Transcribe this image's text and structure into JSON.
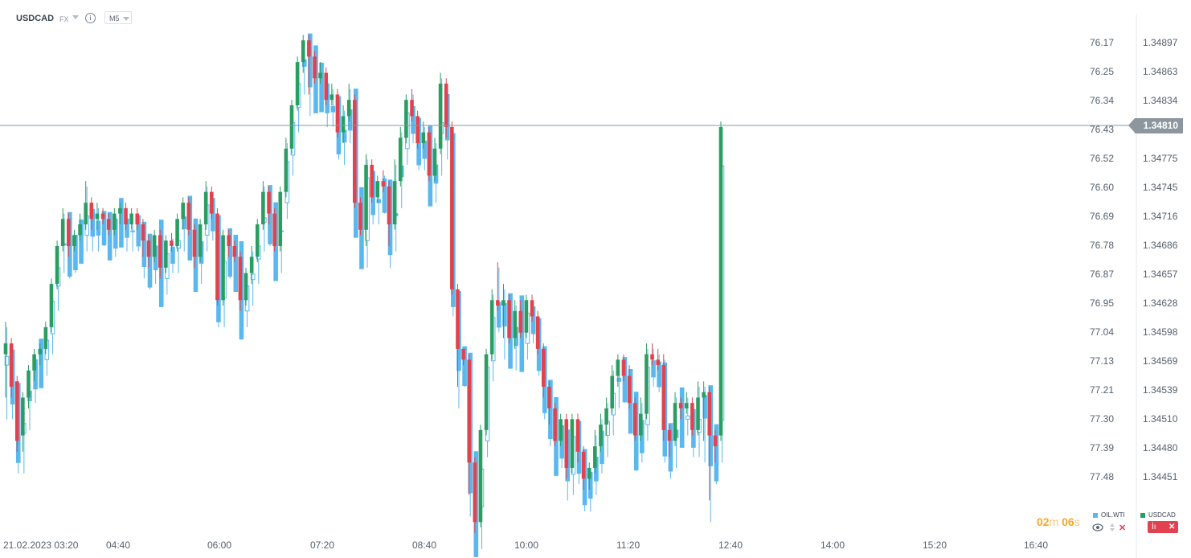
{
  "header": {
    "symbol": "USDCAD",
    "market": "FX",
    "info_glyph": "i",
    "timeframe": "M5"
  },
  "price_axis": {
    "primary": [
      "1.34897",
      "1.34863",
      "1.34834",
      "1.34804",
      "1.34775",
      "1.34745",
      "1.34716",
      "1.34686",
      "1.34657",
      "1.34628",
      "1.34598",
      "1.34569",
      "1.34539",
      "1.34510",
      "1.34480",
      "1.34451"
    ],
    "secondary": [
      "76.17",
      "76.25",
      "76.34",
      "76.43",
      "76.52",
      "76.60",
      "76.69",
      "76.78",
      "76.87",
      "76.95",
      "77.04",
      "77.13",
      "77.21",
      "77.30",
      "77.39",
      "77.48"
    ],
    "current_price": "1.34810"
  },
  "time_axis": [
    "21.02.2023 03:20",
    "04:40",
    "06:00",
    "07:20",
    "08:40",
    "10:00",
    "11:20",
    "12:40",
    "14:00",
    "15:20",
    "16:40"
  ],
  "countdown": {
    "minutes": "02",
    "min_unit": "m",
    "seconds": "06",
    "sec_unit": "s"
  },
  "legend": {
    "items": [
      {
        "label": "OIL.WTI",
        "color": "#5ab8ee"
      },
      {
        "label": "USDCAD",
        "color": "#2a9d62"
      }
    ]
  },
  "controls": {
    "eye_icon": "eye-icon",
    "sort_icon": "sort-icon",
    "remove_icon": "close-icon",
    "settings_glyph": "İı",
    "remove_glyph": "✕"
  },
  "colors": {
    "up": "#2a9d62",
    "down": "#e0434f",
    "overlay": "#5ab8ee",
    "price_line": "#8d969e"
  },
  "chart_data": [
    {
      "type": "candlestick",
      "series": "USDCAD",
      "timeframe": "M5",
      "x_axis": "time",
      "y_range": [
        1.3444,
        1.34905
      ],
      "values": [
        {
          "o": 1.346,
          "c": 1.3461,
          "h": 1.3463,
          "l": 1.3456
        },
        {
          "o": 1.3461,
          "c": 1.3457,
          "h": 1.34615,
          "l": 1.3456
        },
        {
          "o": 1.34575,
          "c": 1.3452,
          "h": 1.3458,
          "l": 1.3451
        },
        {
          "o": 1.34525,
          "c": 1.3456,
          "h": 1.34565,
          "l": 1.3451
        },
        {
          "o": 1.3456,
          "c": 1.34585,
          "h": 1.3459,
          "l": 1.3455
        },
        {
          "o": 1.34585,
          "c": 1.346,
          "h": 1.34605,
          "l": 1.34575
        },
        {
          "o": 1.346,
          "c": 1.34605,
          "h": 1.3461,
          "l": 1.3459
        },
        {
          "o": 1.34605,
          "c": 1.34625,
          "h": 1.3463,
          "l": 1.346
        },
        {
          "o": 1.34625,
          "c": 1.34665,
          "h": 1.3467,
          "l": 1.3462
        },
        {
          "o": 1.34665,
          "c": 1.347,
          "h": 1.34705,
          "l": 1.3466
        },
        {
          "o": 1.347,
          "c": 1.34725,
          "h": 1.34735,
          "l": 1.34695
        },
        {
          "o": 1.34725,
          "c": 1.347,
          "h": 1.3473,
          "l": 1.3469
        },
        {
          "o": 1.347,
          "c": 1.3471,
          "h": 1.34715,
          "l": 1.34695
        },
        {
          "o": 1.3471,
          "c": 1.3472,
          "h": 1.3473,
          "l": 1.34705
        },
        {
          "o": 1.3472,
          "c": 1.3474,
          "h": 1.3476,
          "l": 1.34715
        },
        {
          "o": 1.3474,
          "c": 1.34725,
          "h": 1.34745,
          "l": 1.34715
        },
        {
          "o": 1.34725,
          "c": 1.3473,
          "h": 1.3474,
          "l": 1.34715
        },
        {
          "o": 1.3473,
          "c": 1.34725,
          "h": 1.34735,
          "l": 1.3472
        },
        {
          "o": 1.34725,
          "c": 1.34715,
          "h": 1.3473,
          "l": 1.3471
        },
        {
          "o": 1.34715,
          "c": 1.3473,
          "h": 1.34735,
          "l": 1.3471
        },
        {
          "o": 1.3473,
          "c": 1.34735,
          "h": 1.3474,
          "l": 1.3472
        },
        {
          "o": 1.34735,
          "c": 1.3472,
          "h": 1.3474,
          "l": 1.34715
        },
        {
          "o": 1.3472,
          "c": 1.3473,
          "h": 1.34735,
          "l": 1.34715
        },
        {
          "o": 1.3473,
          "c": 1.3472,
          "h": 1.34735,
          "l": 1.34715
        },
        {
          "o": 1.3472,
          "c": 1.34705,
          "h": 1.34725,
          "l": 1.3469
        },
        {
          "o": 1.34705,
          "c": 1.3469,
          "h": 1.3471,
          "l": 1.3468
        },
        {
          "o": 1.3469,
          "c": 1.3471,
          "h": 1.34715,
          "l": 1.34685
        },
        {
          "o": 1.3471,
          "c": 1.3468,
          "h": 1.34715,
          "l": 1.3467
        },
        {
          "o": 1.3468,
          "c": 1.34705,
          "h": 1.3471,
          "l": 1.34675
        },
        {
          "o": 1.34705,
          "c": 1.347,
          "h": 1.34712,
          "l": 1.34695
        },
        {
          "o": 1.347,
          "c": 1.34725,
          "h": 1.3473,
          "l": 1.34695
        },
        {
          "o": 1.34725,
          "c": 1.3474,
          "h": 1.34745,
          "l": 1.34715
        },
        {
          "o": 1.3474,
          "c": 1.34715,
          "h": 1.34745,
          "l": 1.3471
        },
        {
          "o": 1.34715,
          "c": 1.3469,
          "h": 1.3472,
          "l": 1.3468
        },
        {
          "o": 1.3469,
          "c": 1.3472,
          "h": 1.34725,
          "l": 1.34685
        },
        {
          "o": 1.3472,
          "c": 1.3475,
          "h": 1.3476,
          "l": 1.34715
        },
        {
          "o": 1.3475,
          "c": 1.3473,
          "h": 1.34755,
          "l": 1.34725
        },
        {
          "o": 1.3473,
          "c": 1.3465,
          "h": 1.34735,
          "l": 1.34645
        },
        {
          "o": 1.3465,
          "c": 1.3471,
          "h": 1.34715,
          "l": 1.34645
        },
        {
          "o": 1.3471,
          "c": 1.347,
          "h": 1.34715,
          "l": 1.3469
        },
        {
          "o": 1.347,
          "c": 1.3469,
          "h": 1.34705,
          "l": 1.34685
        },
        {
          "o": 1.3469,
          "c": 1.3465,
          "h": 1.34695,
          "l": 1.3464
        },
        {
          "o": 1.3465,
          "c": 1.34675,
          "h": 1.3468,
          "l": 1.34645
        },
        {
          "o": 1.34675,
          "c": 1.3469,
          "h": 1.347,
          "l": 1.34665
        },
        {
          "o": 1.3469,
          "c": 1.3472,
          "h": 1.34725,
          "l": 1.34685
        },
        {
          "o": 1.3472,
          "c": 1.3475,
          "h": 1.3476,
          "l": 1.34715
        },
        {
          "o": 1.3475,
          "c": 1.3473,
          "h": 1.34755,
          "l": 1.3472
        },
        {
          "o": 1.3473,
          "c": 1.347,
          "h": 1.34735,
          "l": 1.34695
        },
        {
          "o": 1.347,
          "c": 1.3475,
          "h": 1.34755,
          "l": 1.34695
        },
        {
          "o": 1.3475,
          "c": 1.3479,
          "h": 1.348,
          "l": 1.34745
        },
        {
          "o": 1.3479,
          "c": 1.3483,
          "h": 1.34835,
          "l": 1.34785
        },
        {
          "o": 1.3483,
          "c": 1.3487,
          "h": 1.34875,
          "l": 1.34825
        },
        {
          "o": 1.3487,
          "c": 1.3489,
          "h": 1.34895,
          "l": 1.3486
        },
        {
          "o": 1.3489,
          "c": 1.34875,
          "h": 1.34895,
          "l": 1.3484
        },
        {
          "o": 1.34875,
          "c": 1.34855,
          "h": 1.3488,
          "l": 1.3485
        },
        {
          "o": 1.34855,
          "c": 1.3486,
          "h": 1.3487,
          "l": 1.3485
        },
        {
          "o": 1.3486,
          "c": 1.34835,
          "h": 1.34865,
          "l": 1.3483
        },
        {
          "o": 1.34835,
          "c": 1.3484,
          "h": 1.3485,
          "l": 1.3483
        },
        {
          "o": 1.3484,
          "c": 1.34805,
          "h": 1.34845,
          "l": 1.348
        },
        {
          "o": 1.34805,
          "c": 1.3482,
          "h": 1.3483,
          "l": 1.34795
        },
        {
          "o": 1.3482,
          "c": 1.34835,
          "h": 1.3485,
          "l": 1.34815
        },
        {
          "o": 1.34835,
          "c": 1.3474,
          "h": 1.3484,
          "l": 1.34735
        },
        {
          "o": 1.3474,
          "c": 1.34715,
          "h": 1.34745,
          "l": 1.3471
        },
        {
          "o": 1.34715,
          "c": 1.34775,
          "h": 1.34785,
          "l": 1.347
        },
        {
          "o": 1.34775,
          "c": 1.34745,
          "h": 1.3478,
          "l": 1.3474
        },
        {
          "o": 1.34745,
          "c": 1.3476,
          "h": 1.34765,
          "l": 1.3474
        },
        {
          "o": 1.3476,
          "c": 1.34755,
          "h": 1.3477,
          "l": 1.3475
        },
        {
          "o": 1.34755,
          "c": 1.3472,
          "h": 1.3476,
          "l": 1.347
        },
        {
          "o": 1.3472,
          "c": 1.3476,
          "h": 1.3478,
          "l": 1.34715
        },
        {
          "o": 1.3476,
          "c": 1.348,
          "h": 1.3481,
          "l": 1.34755
        },
        {
          "o": 1.348,
          "c": 1.34835,
          "h": 1.3484,
          "l": 1.34795
        },
        {
          "o": 1.34835,
          "c": 1.3482,
          "h": 1.34845,
          "l": 1.34815
        },
        {
          "o": 1.3482,
          "c": 1.34795,
          "h": 1.34825,
          "l": 1.3479
        },
        {
          "o": 1.34795,
          "c": 1.34805,
          "h": 1.34815,
          "l": 1.3479
        },
        {
          "o": 1.34805,
          "c": 1.34765,
          "h": 1.3481,
          "l": 1.3476
        },
        {
          "o": 1.34765,
          "c": 1.3479,
          "h": 1.348,
          "l": 1.3476
        },
        {
          "o": 1.3479,
          "c": 1.3485,
          "h": 1.3486,
          "l": 1.34785
        },
        {
          "o": 1.3485,
          "c": 1.3481,
          "h": 1.34855,
          "l": 1.348
        },
        {
          "o": 1.3481,
          "c": 1.3466,
          "h": 1.34815,
          "l": 1.34655
        },
        {
          "o": 1.3466,
          "c": 1.34605,
          "h": 1.34665,
          "l": 1.3457
        },
        {
          "o": 1.34605,
          "c": 1.34595,
          "h": 1.346,
          "l": 1.3459
        },
        {
          "o": 1.34595,
          "c": 1.345,
          "h": 1.346,
          "l": 1.3447
        },
        {
          "o": 1.345,
          "c": 1.34445,
          "h": 1.34505,
          "l": 1.34435
        },
        {
          "o": 1.34445,
          "c": 1.3453,
          "h": 1.34535,
          "l": 1.3444
        },
        {
          "o": 1.3453,
          "c": 1.346,
          "h": 1.34605,
          "l": 1.34525
        },
        {
          "o": 1.346,
          "c": 1.3465,
          "h": 1.3466,
          "l": 1.34595
        },
        {
          "o": 1.3465,
          "c": 1.34645,
          "h": 1.34685,
          "l": 1.3464
        },
        {
          "o": 1.34645,
          "c": 1.3465,
          "h": 1.34665,
          "l": 1.34615
        },
        {
          "o": 1.3465,
          "c": 1.34615,
          "h": 1.34655,
          "l": 1.3461
        },
        {
          "o": 1.34615,
          "c": 1.3464,
          "h": 1.3465,
          "l": 1.34605
        },
        {
          "o": 1.3464,
          "c": 1.3462,
          "h": 1.3465,
          "l": 1.34615
        },
        {
          "o": 1.3462,
          "c": 1.3465,
          "h": 1.34655,
          "l": 1.34615
        },
        {
          "o": 1.3465,
          "c": 1.34635,
          "h": 1.34655,
          "l": 1.3463
        },
        {
          "o": 1.34635,
          "c": 1.34605,
          "h": 1.3464,
          "l": 1.346
        },
        {
          "o": 1.34605,
          "c": 1.3457,
          "h": 1.3461,
          "l": 1.3456
        },
        {
          "o": 1.3457,
          "c": 1.3455,
          "h": 1.34575,
          "l": 1.34535
        },
        {
          "o": 1.3455,
          "c": 1.3452,
          "h": 1.34555,
          "l": 1.34515
        },
        {
          "o": 1.3452,
          "c": 1.3454,
          "h": 1.34545,
          "l": 1.34515
        },
        {
          "o": 1.3454,
          "c": 1.34495,
          "h": 1.34545,
          "l": 1.34485
        },
        {
          "o": 1.34495,
          "c": 1.3454,
          "h": 1.34545,
          "l": 1.3449
        },
        {
          "o": 1.3454,
          "c": 1.3451,
          "h": 1.34545,
          "l": 1.345
        },
        {
          "o": 1.3451,
          "c": 1.34485,
          "h": 1.34515,
          "l": 1.34475
        },
        {
          "o": 1.34485,
          "c": 1.34495,
          "h": 1.345,
          "l": 1.34475
        },
        {
          "o": 1.34495,
          "c": 1.34515,
          "h": 1.3453,
          "l": 1.3449
        },
        {
          "o": 1.34515,
          "c": 1.34535,
          "h": 1.34545,
          "l": 1.3451
        },
        {
          "o": 1.34535,
          "c": 1.3455,
          "h": 1.3456,
          "l": 1.34525
        },
        {
          "o": 1.3455,
          "c": 1.3458,
          "h": 1.3459,
          "l": 1.34545
        },
        {
          "o": 1.3458,
          "c": 1.34595,
          "h": 1.346,
          "l": 1.3457
        },
        {
          "o": 1.34595,
          "c": 1.3458,
          "h": 1.346,
          "l": 1.34575
        },
        {
          "o": 1.3458,
          "c": 1.34555,
          "h": 1.3459,
          "l": 1.3455
        },
        {
          "o": 1.34555,
          "c": 1.34525,
          "h": 1.3456,
          "l": 1.3452
        },
        {
          "o": 1.34525,
          "c": 1.34545,
          "h": 1.3456,
          "l": 1.3452
        },
        {
          "o": 1.34545,
          "c": 1.346,
          "h": 1.3461,
          "l": 1.3454
        },
        {
          "o": 1.346,
          "c": 1.34595,
          "h": 1.3461,
          "l": 1.3459
        },
        {
          "o": 1.34595,
          "c": 1.3459,
          "h": 1.34605,
          "l": 1.34585
        },
        {
          "o": 1.3459,
          "c": 1.3453,
          "h": 1.346,
          "l": 1.3452
        },
        {
          "o": 1.3453,
          "c": 1.3452,
          "h": 1.34535,
          "l": 1.34505
        },
        {
          "o": 1.3452,
          "c": 1.34555,
          "h": 1.34565,
          "l": 1.34515
        },
        {
          "o": 1.34555,
          "c": 1.3455,
          "h": 1.3456,
          "l": 1.3454
        },
        {
          "o": 1.3455,
          "c": 1.34555,
          "h": 1.34565,
          "l": 1.34545
        },
        {
          "o": 1.34555,
          "c": 1.3453,
          "h": 1.3456,
          "l": 1.34525
        },
        {
          "o": 1.3453,
          "c": 1.3456,
          "h": 1.34575,
          "l": 1.34525
        },
        {
          "o": 1.3456,
          "c": 1.34565,
          "h": 1.34575,
          "l": 1.3452
        },
        {
          "o": 1.34565,
          "c": 1.34525,
          "h": 1.3457,
          "l": 1.34465
        },
        {
          "o": 1.34525,
          "c": 1.34515,
          "h": 1.3453,
          "l": 1.345
        },
        {
          "o": 1.34525,
          "c": 1.3481,
          "h": 1.34815,
          "l": 1.3452
        }
      ]
    }
  ]
}
